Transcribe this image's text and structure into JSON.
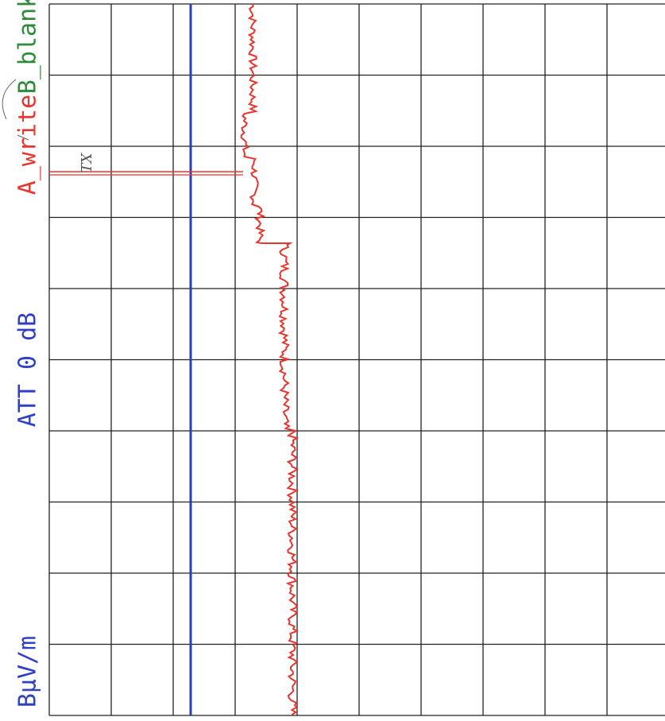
{
  "labels": {
    "trace_a": "A_write",
    "trace_b": "B_blank",
    "attenuation": "ATT 0 dB",
    "unit": "BµV/m"
  },
  "note": "TX"
}
